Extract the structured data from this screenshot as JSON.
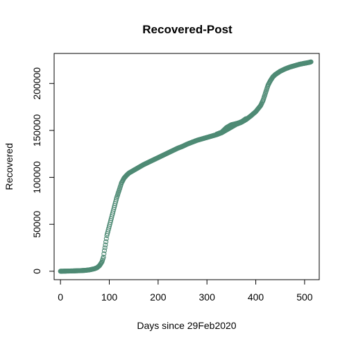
{
  "chart_data": {
    "type": "scatter",
    "title": "Recovered-Post",
    "xlabel": "Days since 29Feb2020",
    "ylabel": "Recovered",
    "xlim": [
      -13,
      530
    ],
    "ylim": [
      -9000,
      232000
    ],
    "x_ticks": [
      0,
      100,
      200,
      300,
      400,
      500
    ],
    "x_tick_labels": [
      "0",
      "100",
      "200",
      "300",
      "400",
      "500"
    ],
    "y_ticks": [
      0,
      50000,
      100000,
      150000,
      200000
    ],
    "y_tick_labels": [
      "0",
      "50000",
      "100000",
      "150000",
      "200000"
    ],
    "grid": false,
    "marker": "open-circle",
    "color": "#4e8a74",
    "points": [
      [
        0,
        0
      ],
      [
        10,
        100
      ],
      [
        20,
        250
      ],
      [
        30,
        400
      ],
      [
        40,
        600
      ],
      [
        50,
        900
      ],
      [
        60,
        1500
      ],
      [
        70,
        2700
      ],
      [
        75,
        3800
      ],
      [
        80,
        6000
      ],
      [
        85,
        10000
      ],
      [
        88,
        15000
      ],
      [
        90,
        22000
      ],
      [
        92,
        28000
      ],
      [
        95,
        38000
      ],
      [
        100,
        48000
      ],
      [
        105,
        58000
      ],
      [
        110,
        68000
      ],
      [
        115,
        78000
      ],
      [
        120,
        86000
      ],
      [
        125,
        94000
      ],
      [
        130,
        99000
      ],
      [
        135,
        102000
      ],
      [
        140,
        104500
      ],
      [
        150,
        107500
      ],
      [
        160,
        110500
      ],
      [
        170,
        113500
      ],
      [
        180,
        116000
      ],
      [
        190,
        118500
      ],
      [
        200,
        121000
      ],
      [
        210,
        123500
      ],
      [
        220,
        126000
      ],
      [
        230,
        128500
      ],
      [
        240,
        131000
      ],
      [
        250,
        133000
      ],
      [
        260,
        135500
      ],
      [
        270,
        137500
      ],
      [
        280,
        139500
      ],
      [
        290,
        141000
      ],
      [
        300,
        142500
      ],
      [
        310,
        144000
      ],
      [
        320,
        145500
      ],
      [
        330,
        147500
      ],
      [
        340,
        150500
      ],
      [
        345,
        152000
      ],
      [
        350,
        153500
      ],
      [
        355,
        155000
      ],
      [
        360,
        156500
      ],
      [
        370,
        158500
      ],
      [
        380,
        161500
      ],
      [
        390,
        165500
      ],
      [
        400,
        170000
      ],
      [
        410,
        176500
      ],
      [
        415,
        182000
      ],
      [
        420,
        190000
      ],
      [
        425,
        198000
      ],
      [
        430,
        203000
      ],
      [
        435,
        207000
      ],
      [
        440,
        209500
      ],
      [
        450,
        213000
      ],
      [
        460,
        215500
      ],
      [
        470,
        217500
      ],
      [
        480,
        219000
      ],
      [
        490,
        220500
      ],
      [
        500,
        221500
      ],
      [
        510,
        222500
      ],
      [
        513,
        223000
      ]
    ],
    "points_secondary": [
      [
        320,
        146000
      ],
      [
        330,
        148000
      ],
      [
        340,
        153000
      ],
      [
        350,
        156000
      ],
      [
        358,
        157000
      ],
      [
        365,
        158000
      ],
      [
        372,
        159500
      ],
      [
        380,
        162500
      ]
    ]
  }
}
